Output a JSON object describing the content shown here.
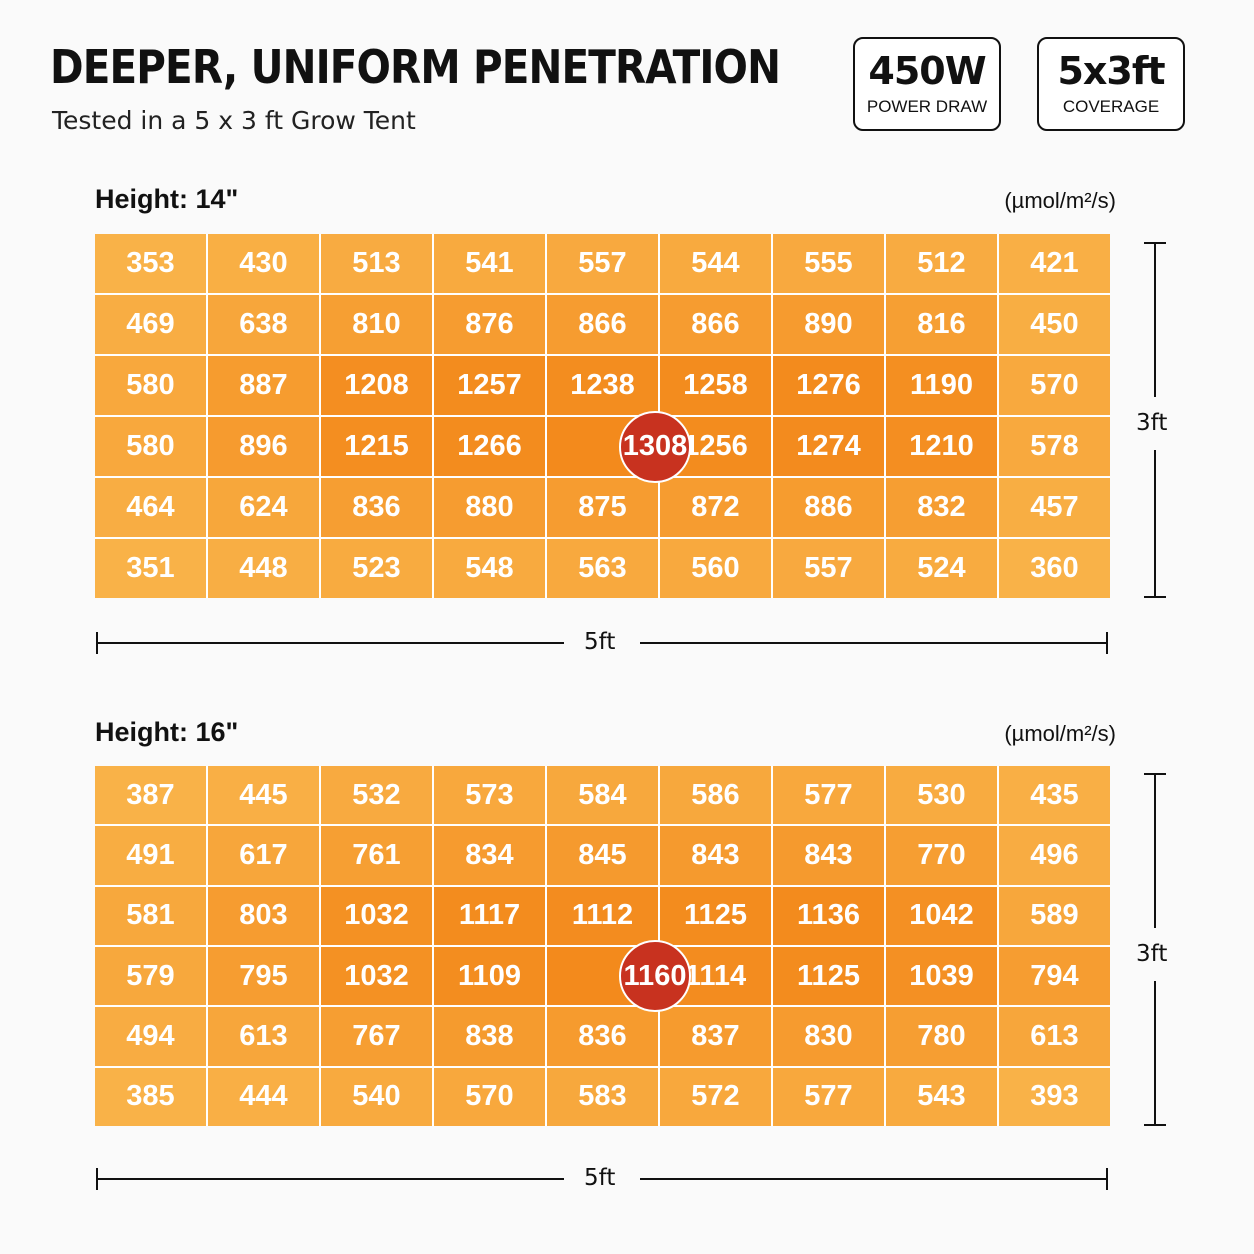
{
  "header": {
    "title": "DEEPER, UNIFORM PENETRATION",
    "subtitle": "Tested in a 5 x 3 ft Grow Tent"
  },
  "badges": [
    {
      "value": "450W",
      "label": "POWER DRAW"
    },
    {
      "value": "5x3ft",
      "label": "COVERAGE"
    }
  ],
  "colors": {
    "low": "#f9b248",
    "high": "#f38a1c",
    "peak": "#c8321f"
  },
  "chart_data": [
    {
      "type": "heatmap",
      "title": "Height: 14\"",
      "unit": "(µmol/m²/s)",
      "width_label": "5ft",
      "depth_label": "3ft",
      "peak": {
        "row": 3,
        "col": 4,
        "value": 1308
      },
      "values": [
        [
          353,
          430,
          513,
          541,
          557,
          544,
          555,
          512,
          421
        ],
        [
          469,
          638,
          810,
          876,
          866,
          866,
          890,
          816,
          450
        ],
        [
          580,
          887,
          1208,
          1257,
          1238,
          1258,
          1276,
          1190,
          570
        ],
        [
          580,
          896,
          1215,
          1266,
          1308,
          1256,
          1274,
          1210,
          578
        ],
        [
          464,
          624,
          836,
          880,
          875,
          872,
          886,
          832,
          457
        ],
        [
          351,
          448,
          523,
          548,
          563,
          560,
          557,
          524,
          360
        ]
      ]
    },
    {
      "type": "heatmap",
      "title": "Height: 16\"",
      "unit": "(µmol/m²/s)",
      "width_label": "5ft",
      "depth_label": "3ft",
      "peak": {
        "row": 3,
        "col": 4,
        "value": 1160
      },
      "values": [
        [
          387,
          445,
          532,
          573,
          584,
          586,
          577,
          530,
          435
        ],
        [
          491,
          617,
          761,
          834,
          845,
          843,
          843,
          770,
          496
        ],
        [
          581,
          803,
          1032,
          1117,
          1112,
          1125,
          1136,
          1042,
          589
        ],
        [
          579,
          795,
          1032,
          1109,
          1160,
          1114,
          1125,
          1039,
          794
        ],
        [
          494,
          613,
          767,
          838,
          836,
          837,
          830,
          780,
          613
        ],
        [
          385,
          444,
          540,
          570,
          583,
          572,
          577,
          543,
          393
        ]
      ]
    }
  ]
}
